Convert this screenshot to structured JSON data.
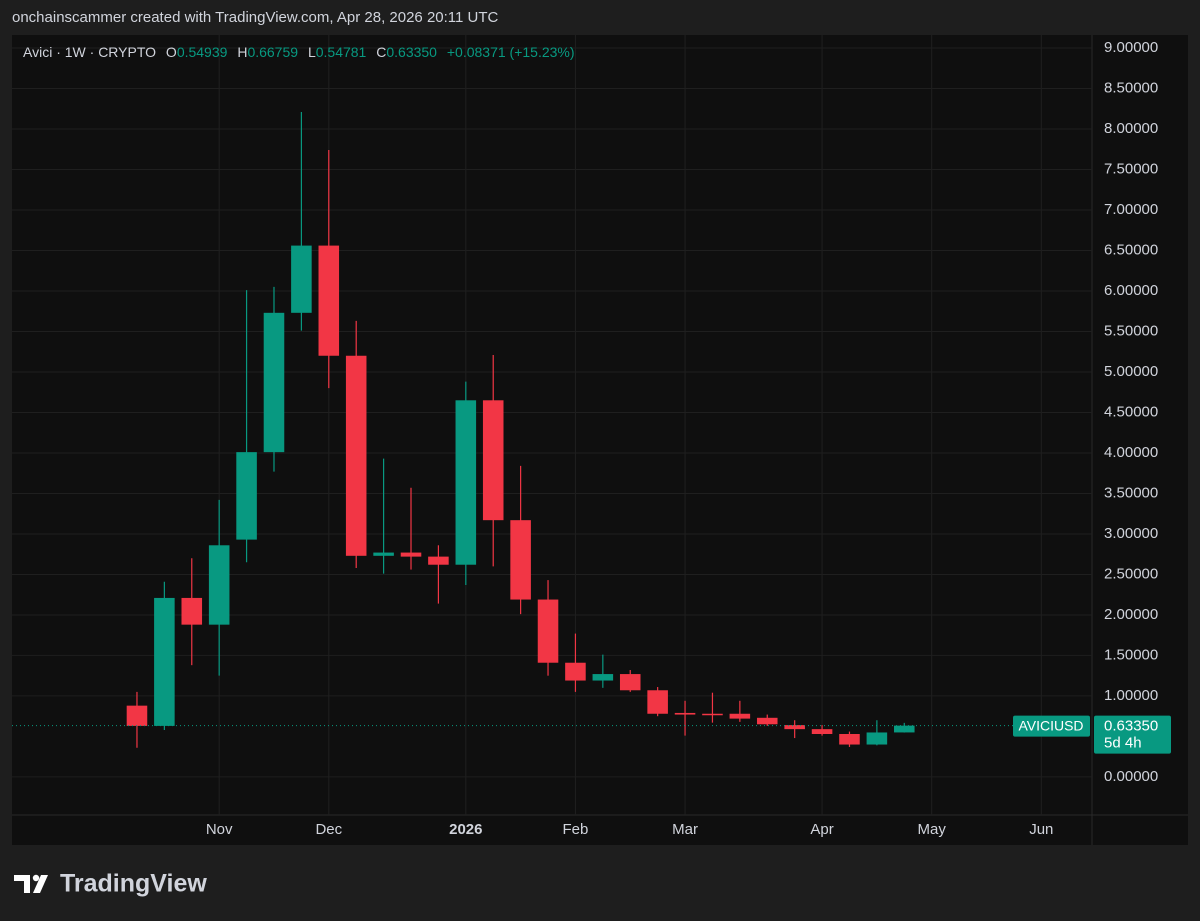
{
  "attribution": "onchainscammer created with TradingView.com, Apr 28, 2026 20:11 UTC",
  "footer": "TradingView",
  "chart_data": {
    "type": "candlestick",
    "legend": {
      "symbol": "Avici · 1W · CRYPTO",
      "open_label": "O",
      "open": "0.54939",
      "high_label": "H",
      "high": "0.66759",
      "low_label": "L",
      "low": "0.54781",
      "close_label": "C",
      "close": "0.63350",
      "change": "+0.08371 (+15.23%)"
    },
    "x": [
      0,
      1,
      2,
      3,
      4,
      5,
      6,
      7,
      8,
      9,
      10,
      11,
      12,
      13,
      14,
      15,
      16,
      17,
      18,
      19,
      20,
      21,
      22,
      23,
      24,
      25,
      26,
      27,
      28
    ],
    "open": [
      0.88,
      0.63,
      2.21,
      1.88,
      2.93,
      4.01,
      5.73,
      6.56,
      5.2,
      2.73,
      2.77,
      2.72,
      2.62,
      4.65,
      3.17,
      2.19,
      1.41,
      1.19,
      1.27,
      1.07,
      0.79,
      0.78,
      0.78,
      0.73,
      0.64,
      0.59,
      0.53,
      0.4,
      0.54939
    ],
    "high": [
      1.05,
      2.41,
      2.7,
      3.42,
      6.01,
      6.05,
      8.21,
      7.74,
      5.63,
      3.93,
      3.57,
      2.86,
      4.88,
      5.21,
      3.84,
      2.43,
      1.77,
      1.51,
      1.32,
      1.11,
      0.94,
      1.04,
      0.94,
      0.77,
      0.7,
      0.64,
      0.56,
      0.7,
      0.66759
    ],
    "low": [
      0.36,
      0.58,
      1.38,
      1.25,
      2.65,
      3.77,
      5.51,
      4.8,
      2.58,
      2.51,
      2.56,
      2.14,
      2.37,
      2.6,
      2.01,
      1.25,
      1.05,
      1.1,
      1.05,
      0.75,
      0.51,
      0.67,
      0.68,
      0.63,
      0.48,
      0.51,
      0.37,
      0.39,
      0.54781
    ],
    "close": [
      0.63,
      2.21,
      1.88,
      2.86,
      4.01,
      5.73,
      6.56,
      5.2,
      2.73,
      2.77,
      2.72,
      2.62,
      4.65,
      3.17,
      2.19,
      1.41,
      1.19,
      1.27,
      1.07,
      0.78,
      0.77,
      0.77,
      0.72,
      0.65,
      0.59,
      0.53,
      0.4,
      0.549,
      0.6335
    ],
    "up_color": "#089981",
    "down_color": "#f23645",
    "xlim": [
      -4.56,
      34.85
    ],
    "xticks": [
      {
        "value": 3,
        "label": "Nov"
      },
      {
        "value": 7,
        "label": "Dec"
      },
      {
        "value": 12,
        "label": "2026"
      },
      {
        "value": 16,
        "label": "Feb"
      },
      {
        "value": 20,
        "label": "Mar"
      },
      {
        "value": 25,
        "label": "Apr"
      },
      {
        "value": 29,
        "label": "May"
      },
      {
        "value": 33,
        "label": "Jun"
      }
    ],
    "ylim": [
      -0.47,
      9.16
    ],
    "yticks": [
      {
        "value": 0,
        "label": "0.00000"
      },
      {
        "value": 1,
        "label": "1.00000"
      },
      {
        "value": 1.5,
        "label": "1.50000"
      },
      {
        "value": 2,
        "label": "2.00000"
      },
      {
        "value": 2.5,
        "label": "2.50000"
      },
      {
        "value": 3,
        "label": "3.00000"
      },
      {
        "value": 3.5,
        "label": "3.50000"
      },
      {
        "value": 4,
        "label": "4.00000"
      },
      {
        "value": 4.5,
        "label": "4.50000"
      },
      {
        "value": 5,
        "label": "5.00000"
      },
      {
        "value": 5.5,
        "label": "5.50000"
      },
      {
        "value": 6,
        "label": "6.00000"
      },
      {
        "value": 6.5,
        "label": "6.50000"
      },
      {
        "value": 7,
        "label": "7.00000"
      },
      {
        "value": 7.5,
        "label": "7.50000"
      },
      {
        "value": 8,
        "label": "8.00000"
      },
      {
        "value": 8.5,
        "label": "8.50000"
      },
      {
        "value": 9,
        "label": "9.00000"
      }
    ],
    "grid": true,
    "price_label": {
      "symbol": "AVICIUSD",
      "value": 0.6335,
      "label": "0.63350",
      "countdown": "5d 4h"
    }
  }
}
